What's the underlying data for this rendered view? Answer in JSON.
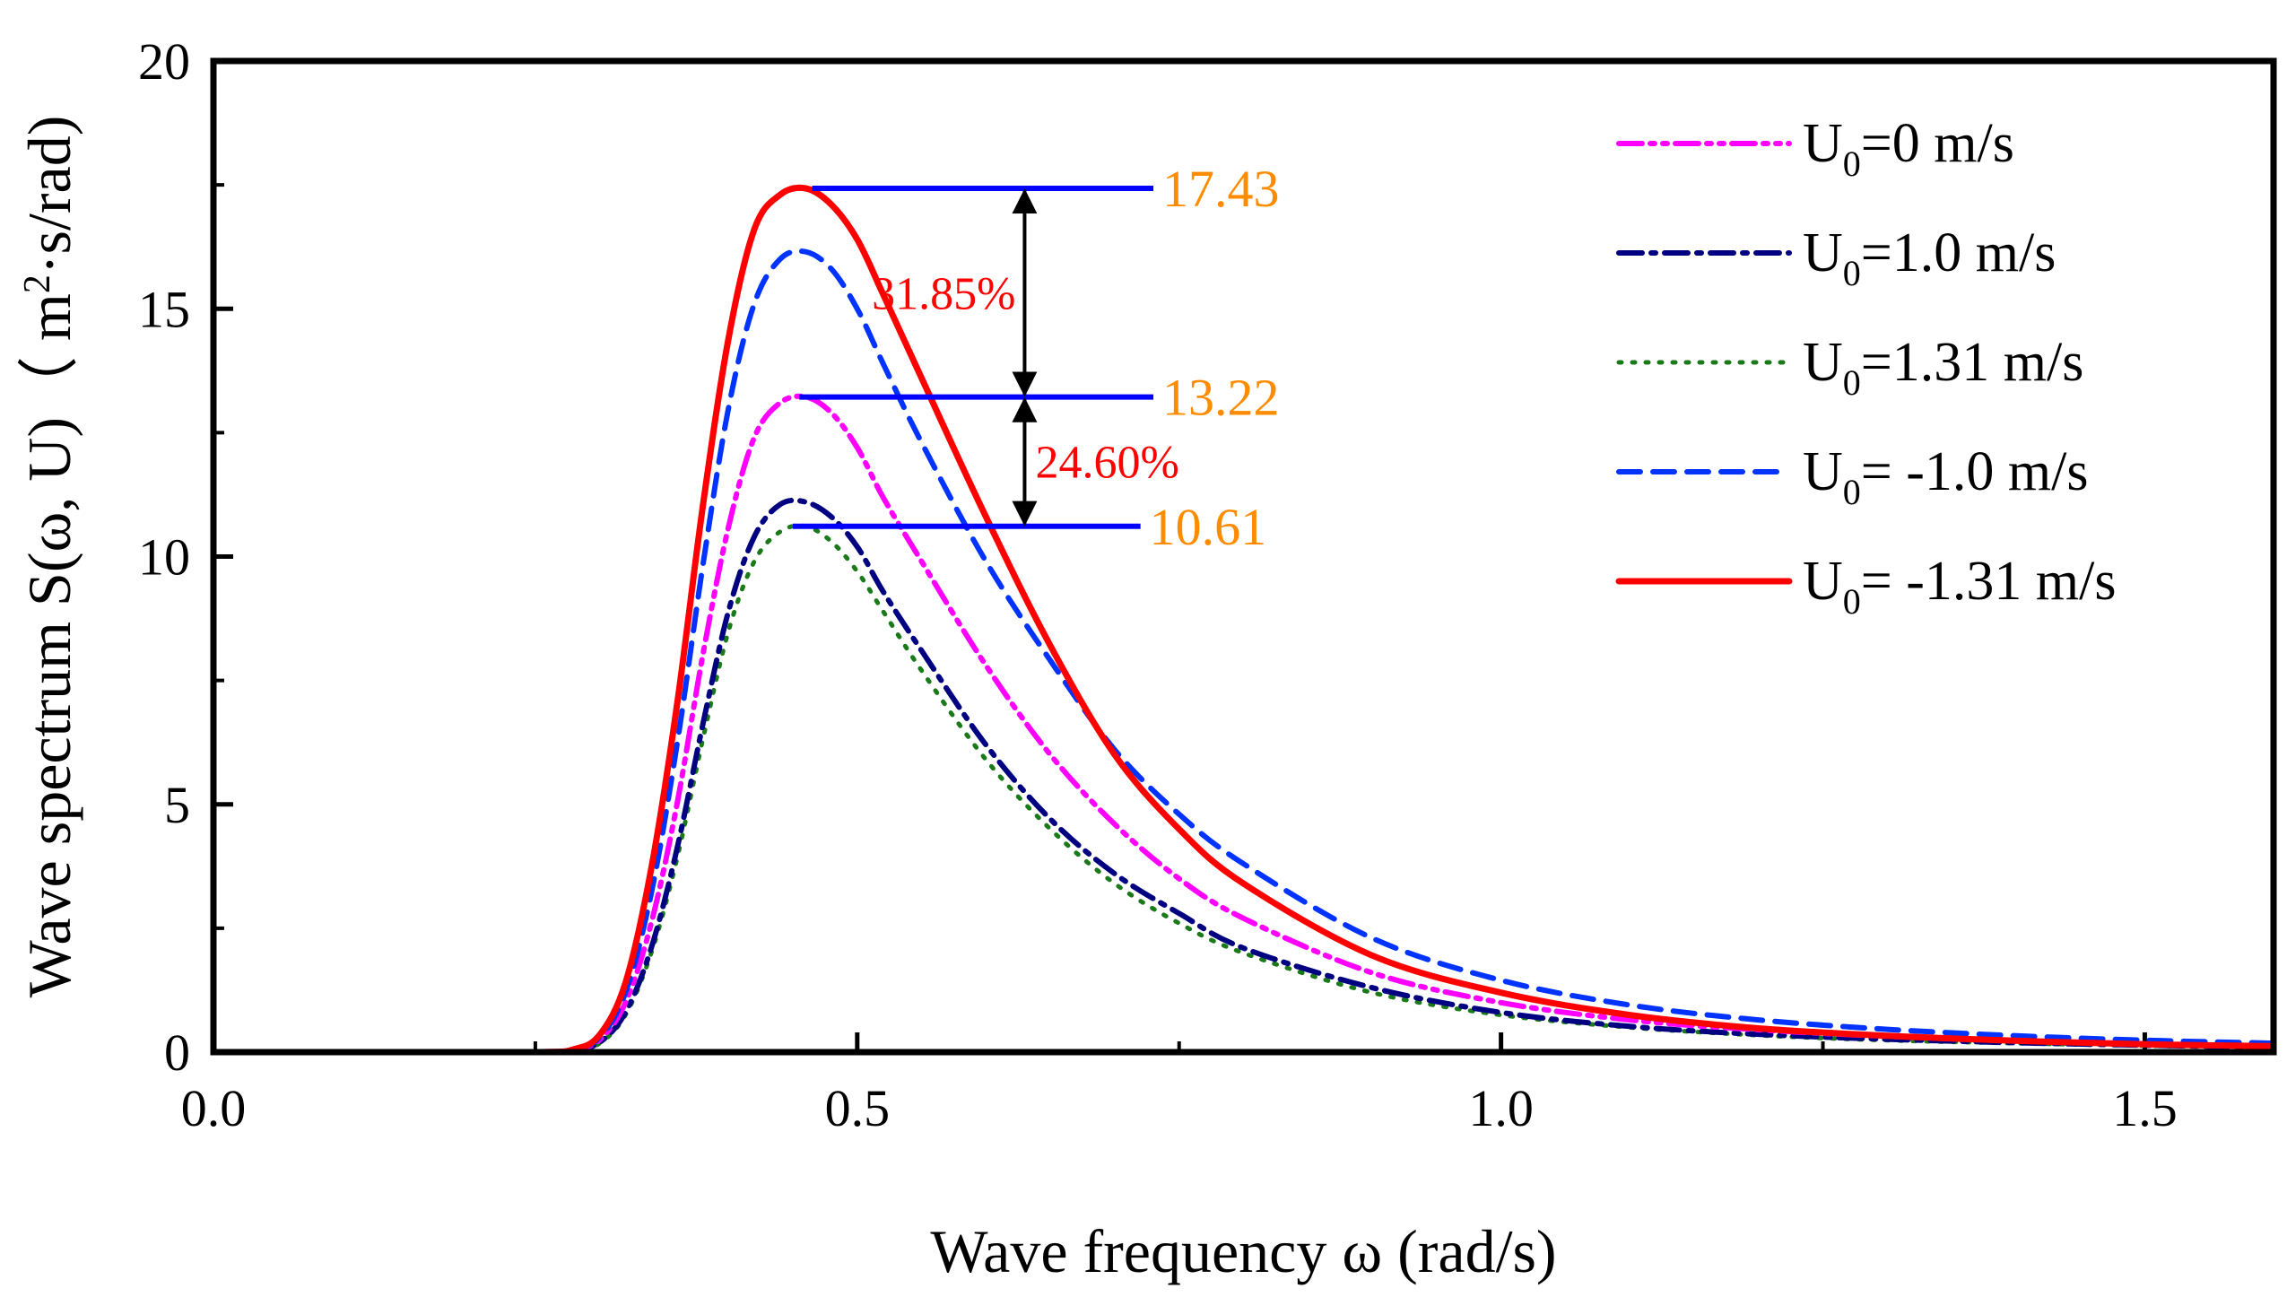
{
  "chart_data": {
    "type": "line",
    "xlabel": "Wave frequency ω (rad/s)",
    "ylabel_parts": {
      "pre": "Wave spectrum S(ω, U)（ m",
      "sup": "2",
      "post": "·s/rad)"
    },
    "xlim": [
      0.0,
      1.6
    ],
    "ylim": [
      0,
      20
    ],
    "x_ticks": [
      "0.0",
      "0.5",
      "1.0",
      "1.5"
    ],
    "x_tick_values": [
      0.0,
      0.5,
      1.0,
      1.5
    ],
    "y_ticks": [
      "0",
      "5",
      "10",
      "15",
      "20"
    ],
    "y_tick_values": [
      0,
      5,
      10,
      15,
      20
    ],
    "legend_position": "top-right",
    "series": [
      {
        "name": "U0=0 m/s",
        "legend_parts": {
          "pre": "U",
          "sub": "0",
          "post": "=0 m/s"
        },
        "color": "#ff00ff",
        "dash": "dashdotdot",
        "x": [
          0.1,
          0.25,
          0.28,
          0.3,
          0.32,
          0.34,
          0.36,
          0.38,
          0.4,
          0.42,
          0.44,
          0.46,
          0.48,
          0.5,
          0.52,
          0.55,
          0.6,
          0.65,
          0.7,
          0.75,
          0.8,
          0.9,
          1.0,
          1.1,
          1.2,
          1.3,
          1.4,
          1.5,
          1.6
        ],
        "values": [
          0,
          0,
          0.05,
          0.25,
          1.0,
          2.6,
          5.0,
          8.0,
          10.6,
          12.4,
          13.1,
          13.22,
          12.9,
          12.2,
          11.2,
          9.9,
          7.8,
          6.0,
          4.6,
          3.5,
          2.7,
          1.6,
          1.0,
          0.65,
          0.45,
          0.32,
          0.23,
          0.17,
          0.12
        ]
      },
      {
        "name": "U0=1.0 m/s",
        "legend_parts": {
          "pre": "U",
          "sub": "0",
          "post": "=1.0 m/s"
        },
        "color": "#000080",
        "dash": "dashdot",
        "x": [
          0.1,
          0.25,
          0.28,
          0.3,
          0.32,
          0.34,
          0.36,
          0.38,
          0.4,
          0.42,
          0.44,
          0.46,
          0.48,
          0.5,
          0.52,
          0.55,
          0.6,
          0.65,
          0.7,
          0.75,
          0.8,
          0.9,
          1.0,
          1.1,
          1.2,
          1.3,
          1.4,
          1.5,
          1.6
        ],
        "values": [
          0,
          0,
          0.04,
          0.2,
          0.8,
          2.1,
          4.1,
          6.6,
          8.9,
          10.4,
          11.05,
          11.1,
          10.8,
          10.2,
          9.3,
          8.1,
          6.2,
          4.7,
          3.6,
          2.8,
          2.1,
          1.3,
          0.8,
          0.52,
          0.36,
          0.26,
          0.19,
          0.14,
          0.1
        ]
      },
      {
        "name": "U0=1.31 m/s",
        "legend_parts": {
          "pre": "U",
          "sub": "0",
          "post": "=1.31 m/s"
        },
        "color": "#1a7a1a",
        "dash": "dot",
        "x": [
          0.1,
          0.25,
          0.28,
          0.3,
          0.32,
          0.34,
          0.36,
          0.38,
          0.4,
          0.42,
          0.44,
          0.46,
          0.48,
          0.5,
          0.52,
          0.55,
          0.6,
          0.65,
          0.7,
          0.75,
          0.8,
          0.9,
          1.0,
          1.1,
          1.2,
          1.3,
          1.4,
          1.5,
          1.6
        ],
        "values": [
          0,
          0,
          0.03,
          0.18,
          0.75,
          2.0,
          3.9,
          6.3,
          8.5,
          9.9,
          10.5,
          10.61,
          10.3,
          9.7,
          8.9,
          7.7,
          5.9,
          4.5,
          3.4,
          2.6,
          2.0,
          1.2,
          0.75,
          0.5,
          0.34,
          0.24,
          0.18,
          0.13,
          0.09
        ]
      },
      {
        "name": "U0= -1.0 m/s",
        "legend_parts": {
          "pre": "U",
          "sub": "0",
          "post": "= -1.0 m/s"
        },
        "color": "#0033ff",
        "dash": "dash",
        "x": [
          0.1,
          0.25,
          0.28,
          0.3,
          0.32,
          0.34,
          0.36,
          0.38,
          0.4,
          0.42,
          0.44,
          0.46,
          0.48,
          0.5,
          0.52,
          0.55,
          0.6,
          0.65,
          0.7,
          0.75,
          0.8,
          0.9,
          1.0,
          1.1,
          1.2,
          1.3,
          1.4,
          1.5,
          1.6
        ],
        "values": [
          0,
          0,
          0.06,
          0.3,
          1.2,
          3.2,
          6.2,
          9.8,
          13.0,
          15.1,
          16.0,
          16.15,
          15.8,
          15.0,
          13.9,
          12.3,
          9.9,
          7.9,
          6.1,
          4.8,
          3.8,
          2.3,
          1.45,
          0.95,
          0.65,
          0.46,
          0.33,
          0.24,
          0.18
        ]
      },
      {
        "name": "U0= -1.31 m/s",
        "legend_parts": {
          "pre": "U",
          "sub": "0",
          "post": "= -1.31 m/s"
        },
        "color": "#ff0000",
        "dash": "solid",
        "x": [
          0.1,
          0.25,
          0.28,
          0.3,
          0.32,
          0.34,
          0.36,
          0.38,
          0.4,
          0.42,
          0.44,
          0.46,
          0.48,
          0.5,
          0.52,
          0.55,
          0.6,
          0.65,
          0.7,
          0.75,
          0.8,
          0.9,
          1.0,
          1.1,
          1.2,
          1.3,
          1.4,
          1.5,
          1.6
        ],
        "values": [
          0,
          0,
          0.06,
          0.35,
          1.4,
          3.7,
          7.0,
          11.0,
          14.4,
          16.6,
          17.3,
          17.43,
          17.1,
          16.4,
          15.3,
          13.6,
          10.8,
          8.2,
          6.0,
          4.5,
          3.4,
          1.95,
          1.2,
          0.75,
          0.48,
          0.33,
          0.23,
          0.16,
          0.12
        ]
      }
    ],
    "reference_lines": [
      {
        "y": 17.43,
        "x_start": 0.465,
        "x_end": 0.73,
        "label": "17.43",
        "color": "#0000ff"
      },
      {
        "y": 13.22,
        "x_start": 0.455,
        "x_end": 0.73,
        "label": "13.22",
        "color": "#0000ff"
      },
      {
        "y": 10.61,
        "x_start": 0.45,
        "x_end": 0.72,
        "label": "10.61",
        "color": "#0000ff"
      }
    ],
    "annotations": [
      {
        "text": "31.85%",
        "x": 0.63,
        "y_from": 17.43,
        "y_to": 13.22,
        "color": "#ff0000"
      },
      {
        "text": "24.60%",
        "x": 0.63,
        "y_from": 13.22,
        "y_to": 10.61,
        "color": "#ff0000"
      }
    ],
    "colors": {
      "peak_label": "#ff8c00",
      "annotation": "#ff0000",
      "arrow": "#000000",
      "axis": "#000000"
    }
  }
}
